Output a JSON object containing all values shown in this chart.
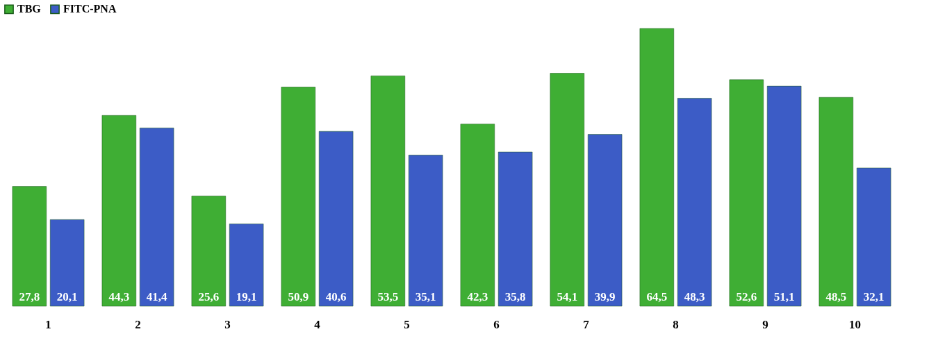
{
  "chart_data": {
    "type": "bar",
    "legend": "top",
    "categories": [
      "1",
      "2",
      "3",
      "4",
      "5",
      "6",
      "7",
      "8",
      "9",
      "10"
    ],
    "series": [
      {
        "name": "TBG",
        "color": "#3fae34",
        "values": [
          27.8,
          44.3,
          25.6,
          50.9,
          53.5,
          42.3,
          54.1,
          64.5,
          52.6,
          48.5
        ],
        "value_labels": [
          "27,8",
          "44,3",
          "25,6",
          "50,9",
          "53,5",
          "42,3",
          "54,1",
          "64,5",
          "52,6",
          "48,5"
        ]
      },
      {
        "name": "FITC-PNA",
        "color": "#3c5cc6",
        "values": [
          20.1,
          41.4,
          19.1,
          40.6,
          35.1,
          35.8,
          39.9,
          48.3,
          51.1,
          32.1
        ],
        "value_labels": [
          "20,1",
          "41,4",
          "19,1",
          "40,6",
          "35,1",
          "35,8",
          "39,9",
          "48,3",
          "51,1",
          "32,1"
        ]
      }
    ]
  }
}
